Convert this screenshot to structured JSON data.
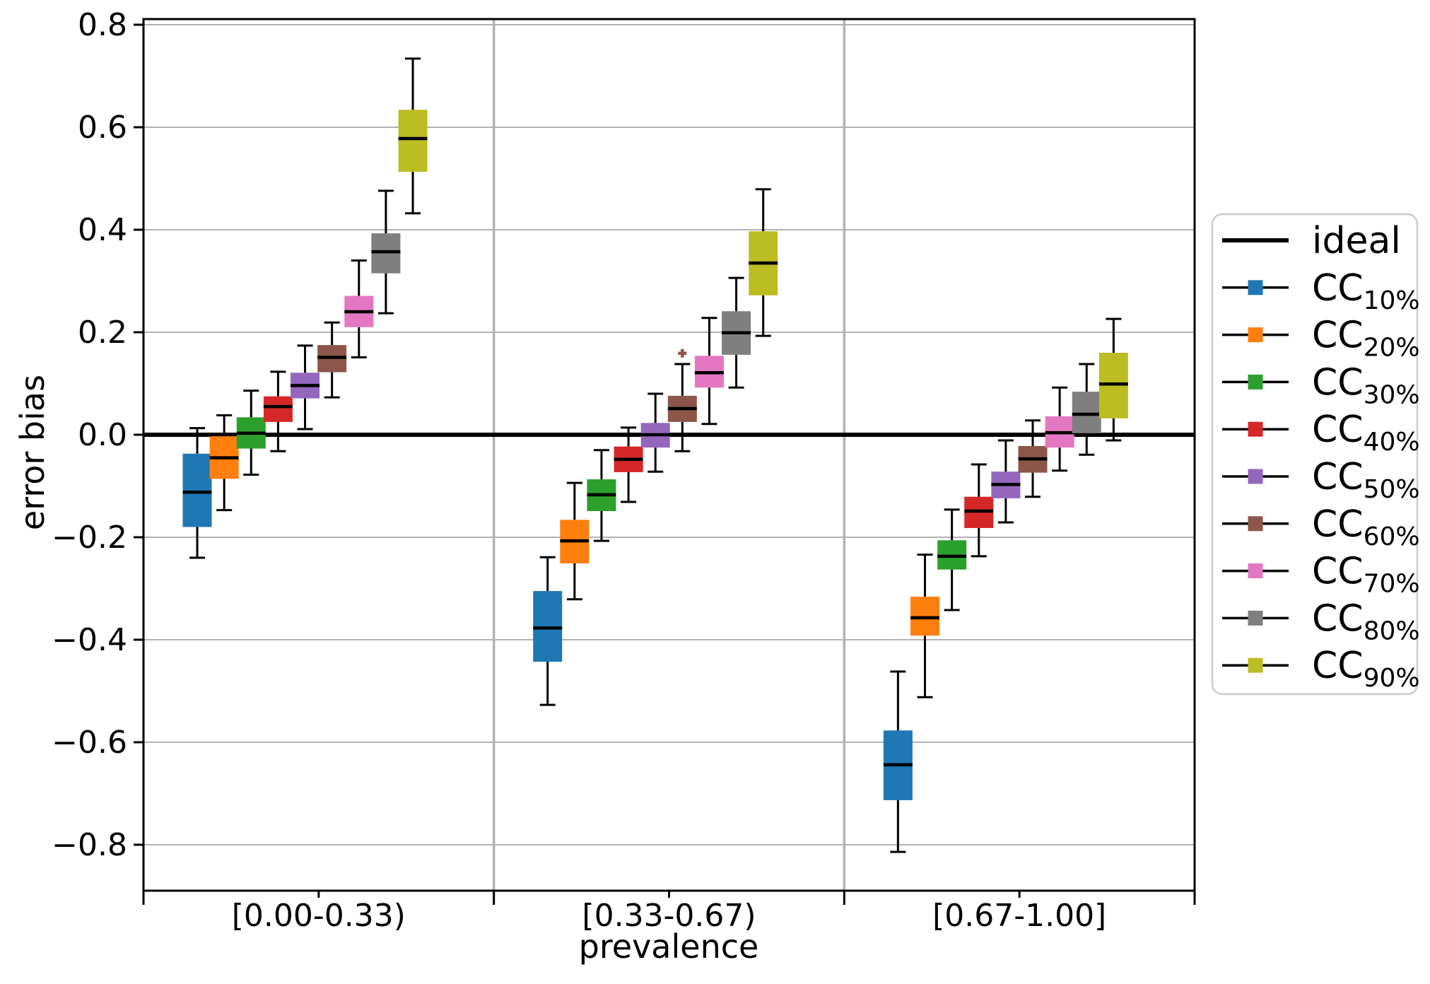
{
  "chart_data": {
    "type": "boxplot",
    "title": "",
    "xlabel": "prevalence",
    "ylabel": "error bias",
    "categories": [
      "[0.00-0.33)",
      "[0.33-0.67)",
      "[0.67-1.00]"
    ],
    "ylim": [
      -0.89,
      0.81
    ],
    "yticks": [
      "0.8",
      "0.6",
      "0.4",
      "0.2",
      "0.0",
      "−0.2",
      "−0.4",
      "−0.6",
      "−0.8"
    ],
    "grid": true,
    "legend": {
      "position": "center-right",
      "ideal_label": "ideal"
    },
    "ideal_value": 0.0,
    "ideal_color": "#000000",
    "series": [
      {
        "label": "CC",
        "sub": "10%",
        "color": "#1f77b4",
        "boxes": [
          {
            "whislo": -0.24,
            "q1": -0.18,
            "med": -0.112,
            "q3": -0.037,
            "whishi": 0.013,
            "fliers": []
          },
          {
            "whislo": -0.527,
            "q1": -0.443,
            "med": -0.377,
            "q3": -0.305,
            "whishi": -0.239,
            "fliers": []
          },
          {
            "whislo": -0.814,
            "q1": -0.713,
            "med": -0.644,
            "q3": -0.577,
            "whishi": -0.462,
            "fliers": []
          }
        ]
      },
      {
        "label": "CC",
        "sub": "20%",
        "color": "#ff7f0e",
        "boxes": [
          {
            "whislo": -0.147,
            "q1": -0.086,
            "med": -0.045,
            "q3": -0.003,
            "whishi": 0.038,
            "fliers": []
          },
          {
            "whislo": -0.321,
            "q1": -0.251,
            "med": -0.207,
            "q3": -0.166,
            "whishi": -0.094,
            "fliers": []
          },
          {
            "whislo": -0.512,
            "q1": -0.392,
            "med": -0.357,
            "q3": -0.316,
            "whishi": -0.234,
            "fliers": []
          }
        ]
      },
      {
        "label": "CC",
        "sub": "30%",
        "color": "#2ca02c",
        "boxes": [
          {
            "whislo": -0.078,
            "q1": -0.027,
            "med": 0.003,
            "q3": 0.034,
            "whishi": 0.086,
            "fliers": []
          },
          {
            "whislo": -0.207,
            "q1": -0.149,
            "med": -0.117,
            "q3": -0.087,
            "whishi": -0.03,
            "fliers": []
          },
          {
            "whislo": -0.342,
            "q1": -0.263,
            "med": -0.237,
            "q3": -0.206,
            "whishi": -0.146,
            "fliers": []
          }
        ]
      },
      {
        "label": "CC",
        "sub": "40%",
        "color": "#d62728",
        "boxes": [
          {
            "whislo": -0.032,
            "q1": 0.025,
            "med": 0.055,
            "q3": 0.075,
            "whishi": 0.123,
            "fliers": []
          },
          {
            "whislo": -0.131,
            "q1": -0.073,
            "med": -0.048,
            "q3": -0.023,
            "whishi": 0.014,
            "fliers": []
          },
          {
            "whislo": -0.237,
            "q1": -0.182,
            "med": -0.149,
            "q3": -0.121,
            "whishi": -0.058,
            "fliers": []
          }
        ]
      },
      {
        "label": "CC",
        "sub": "50%",
        "color": "#9467bd",
        "boxes": [
          {
            "whislo": 0.011,
            "q1": 0.071,
            "med": 0.096,
            "q3": 0.121,
            "whishi": 0.174,
            "fliers": []
          },
          {
            "whislo": -0.072,
            "q1": -0.025,
            "med": 0.0,
            "q3": 0.023,
            "whishi": 0.08,
            "fliers": []
          },
          {
            "whislo": -0.171,
            "q1": -0.124,
            "med": -0.097,
            "q3": -0.072,
            "whishi": -0.011,
            "fliers": []
          }
        ]
      },
      {
        "label": "CC",
        "sub": "60%",
        "color": "#8c564b",
        "boxes": [
          {
            "whislo": 0.073,
            "q1": 0.122,
            "med": 0.151,
            "q3": 0.175,
            "whishi": 0.219,
            "fliers": []
          },
          {
            "whislo": -0.032,
            "q1": 0.025,
            "med": 0.051,
            "q3": 0.076,
            "whishi": 0.138,
            "fliers": [
              0.159
            ]
          },
          {
            "whislo": -0.121,
            "q1": -0.074,
            "med": -0.047,
            "q3": -0.022,
            "whishi": 0.028,
            "fliers": []
          }
        ]
      },
      {
        "label": "CC",
        "sub": "70%",
        "color": "#e377c2",
        "boxes": [
          {
            "whislo": 0.151,
            "q1": 0.21,
            "med": 0.24,
            "q3": 0.271,
            "whishi": 0.34,
            "fliers": []
          },
          {
            "whislo": 0.021,
            "q1": 0.092,
            "med": 0.121,
            "q3": 0.154,
            "whishi": 0.228,
            "fliers": []
          },
          {
            "whislo": -0.07,
            "q1": -0.025,
            "med": 0.004,
            "q3": 0.036,
            "whishi": 0.092,
            "fliers": []
          }
        ]
      },
      {
        "label": "CC",
        "sub": "80%",
        "color": "#7f7f7f",
        "boxes": [
          {
            "whislo": 0.237,
            "q1": 0.315,
            "med": 0.357,
            "q3": 0.393,
            "whishi": 0.476,
            "fliers": []
          },
          {
            "whislo": 0.092,
            "q1": 0.156,
            "med": 0.199,
            "q3": 0.241,
            "whishi": 0.306,
            "fliers": []
          },
          {
            "whislo": -0.039,
            "q1": 0.003,
            "med": 0.04,
            "q3": 0.084,
            "whishi": 0.138,
            "fliers": []
          }
        ]
      },
      {
        "label": "CC",
        "sub": "90%",
        "color": "#bcbd22",
        "boxes": [
          {
            "whislo": 0.432,
            "q1": 0.513,
            "med": 0.578,
            "q3": 0.634,
            "whishi": 0.734,
            "fliers": []
          },
          {
            "whislo": 0.193,
            "q1": 0.272,
            "med": 0.335,
            "q3": 0.397,
            "whishi": 0.479,
            "fliers": []
          },
          {
            "whislo": -0.011,
            "q1": 0.032,
            "med": 0.099,
            "q3": 0.16,
            "whishi": 0.226,
            "fliers": []
          }
        ]
      }
    ]
  }
}
